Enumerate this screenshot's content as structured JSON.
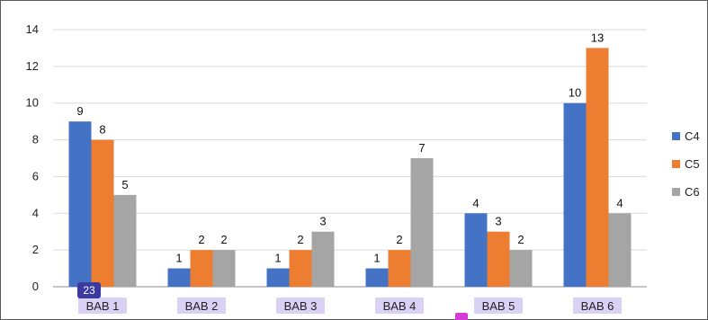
{
  "chart_data": {
    "type": "bar",
    "categories": [
      "BAB 1",
      "BAB 2",
      "BAB 3",
      "BAB 4",
      "BAB 5",
      "BAB 6"
    ],
    "series": [
      {
        "name": "C4",
        "values": [
          9,
          1,
          1,
          1,
          4,
          10
        ],
        "color": "#4472c4"
      },
      {
        "name": "C5",
        "values": [
          8,
          2,
          2,
          2,
          3,
          13
        ],
        "color": "#ed7d31"
      },
      {
        "name": "C6",
        "values": [
          5,
          2,
          3,
          7,
          2,
          4
        ],
        "color": "#a5a5a5"
      }
    ],
    "ylim": [
      0,
      14
    ],
    "yticks": [
      0,
      2,
      4,
      6,
      8,
      10,
      12,
      14
    ],
    "grid": true,
    "legend_position": "right",
    "data_labels": true,
    "category_label_highlight": "#d9d2f4"
  },
  "overlay": {
    "badge_text": "23",
    "badge_color": "#3b3aa0"
  }
}
